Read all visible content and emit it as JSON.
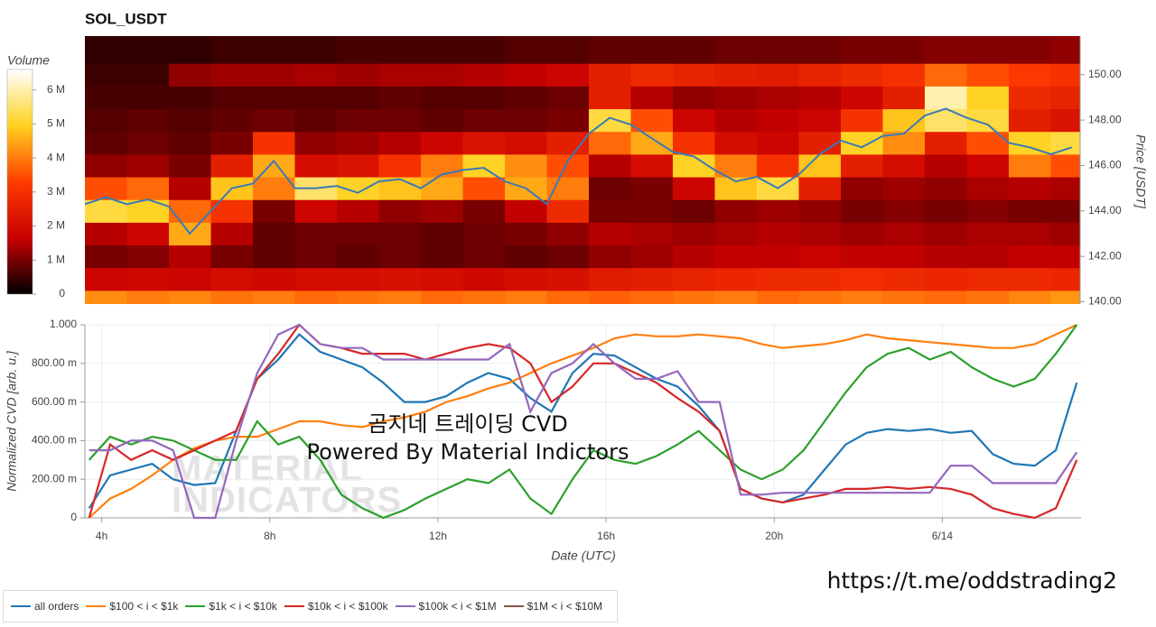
{
  "chart_data": [
    {
      "type": "heatmap",
      "title": "SOL_USDT",
      "xlim": [
        3.6,
        27.3
      ],
      "ylim": [
        139.9,
        151.7
      ],
      "yticks": [
        {
          "value": 140,
          "label": "140.00"
        },
        {
          "value": 142,
          "label": "142.00"
        },
        {
          "value": 144,
          "label": "144.00"
        },
        {
          "value": 146,
          "label": "146.00"
        },
        {
          "value": 148,
          "label": "148.00"
        },
        {
          "value": 150,
          "label": "150.00"
        }
      ],
      "ylabel": "Price [USDT]",
      "xbins": [
        3.6,
        4.6,
        5.6,
        6.6,
        7.6,
        8.6,
        9.6,
        10.6,
        11.6,
        12.6,
        13.6,
        14.6,
        15.6,
        16.6,
        17.6,
        18.6,
        19.6,
        20.6,
        21.6,
        22.6,
        23.6,
        24.6,
        25.6,
        26.6,
        27.3
      ],
      "ybins": [
        139.9,
        140.5,
        141.5,
        142.5,
        143.5,
        144.5,
        145.5,
        146.5,
        147.5,
        148.5,
        149.5,
        150.5,
        151.7
      ],
      "z": [
        [
          4.2,
          4.0,
          4.1,
          3.9,
          4.0,
          3.8,
          3.9,
          4.0,
          3.8,
          3.9,
          4.0,
          3.8,
          3.7,
          3.8,
          3.9,
          4.0,
          3.8,
          3.9,
          4.0,
          3.9,
          3.8,
          3.9,
          4.1,
          4.3
        ],
        [
          1.8,
          1.9,
          1.8,
          2.0,
          1.9,
          2.0,
          2.0,
          2.1,
          2.0,
          1.9,
          2.0,
          2.1,
          2.4,
          2.5,
          2.6,
          2.7,
          2.8,
          2.8,
          2.9,
          2.8,
          2.7,
          2.8,
          2.8,
          2.7
        ],
        [
          1.0,
          1.1,
          1.5,
          1.0,
          0.8,
          0.9,
          0.8,
          0.9,
          0.8,
          0.9,
          0.8,
          0.9,
          1.2,
          1.3,
          1.5,
          1.6,
          1.6,
          1.7,
          1.6,
          1.6,
          1.5,
          1.5,
          1.6,
          1.6
        ],
        [
          1.5,
          1.8,
          4.5,
          1.5,
          0.8,
          0.9,
          0.9,
          0.9,
          0.8,
          0.9,
          1.0,
          1.2,
          1.5,
          1.4,
          1.3,
          1.4,
          1.5,
          1.4,
          1.3,
          1.4,
          1.3,
          1.4,
          1.4,
          1.3
        ],
        [
          5.2,
          5.0,
          3.8,
          3.0,
          1.0,
          1.8,
          1.5,
          1.2,
          1.3,
          1.0,
          1.6,
          2.8,
          1.0,
          1.0,
          0.9,
          1.2,
          1.3,
          1.2,
          1.0,
          1.1,
          1.0,
          1.1,
          1.0,
          1.0
        ],
        [
          3.5,
          3.8,
          1.5,
          4.8,
          4.0,
          5.5,
          5.0,
          4.8,
          4.5,
          3.5,
          4.5,
          4.0,
          0.9,
          1.0,
          1.8,
          4.8,
          5.2,
          2.5,
          1.2,
          1.3,
          1.2,
          1.4,
          1.5,
          1.4
        ],
        [
          1.2,
          1.3,
          1.0,
          2.5,
          4.5,
          2.0,
          2.2,
          3.0,
          4.0,
          5.0,
          4.2,
          3.5,
          1.5,
          2.0,
          5.0,
          4.0,
          3.0,
          4.8,
          2.5,
          2.0,
          1.5,
          1.8,
          4.0,
          3.5
        ],
        [
          0.8,
          0.9,
          0.8,
          1.0,
          3.0,
          1.2,
          1.3,
          1.5,
          1.8,
          2.2,
          2.0,
          2.5,
          3.8,
          4.5,
          3.0,
          2.0,
          1.8,
          2.5,
          5.0,
          4.2,
          2.5,
          3.5,
          5.0,
          5.2
        ],
        [
          0.7,
          0.8,
          0.7,
          0.8,
          0.9,
          0.8,
          0.9,
          0.9,
          0.8,
          0.9,
          0.9,
          1.0,
          5.2,
          3.5,
          1.8,
          1.5,
          1.6,
          1.8,
          3.0,
          4.8,
          5.5,
          5.2,
          2.5,
          2.2
        ],
        [
          0.6,
          0.6,
          0.6,
          0.7,
          0.7,
          0.7,
          0.7,
          0.8,
          0.7,
          0.7,
          0.8,
          0.9,
          2.5,
          1.5,
          1.2,
          1.3,
          1.4,
          1.5,
          1.8,
          2.5,
          6.0,
          5.0,
          2.8,
          2.6
        ],
        [
          0.5,
          0.5,
          1.2,
          1.3,
          1.3,
          1.4,
          1.3,
          1.4,
          1.4,
          1.5,
          1.6,
          1.8,
          2.5,
          2.8,
          2.6,
          2.5,
          2.4,
          2.6,
          2.8,
          3.0,
          3.8,
          3.5,
          3.2,
          3.0
        ],
        [
          0.4,
          0.4,
          0.4,
          0.5,
          0.5,
          0.5,
          0.6,
          0.6,
          0.6,
          0.6,
          0.7,
          0.7,
          0.8,
          0.8,
          0.8,
          0.9,
          0.9,
          0.9,
          1.0,
          1.0,
          1.1,
          1.1,
          1.1,
          1.2
        ]
      ],
      "colorbar": {
        "title": "Volume",
        "lim": [
          0,
          6.6
        ],
        "ticks": [
          {
            "value": 0,
            "label": "0"
          },
          {
            "value": 1,
            "label": "1 M"
          },
          {
            "value": 2,
            "label": "2 M"
          },
          {
            "value": 3,
            "label": "3 M"
          },
          {
            "value": 4,
            "label": "4 M"
          },
          {
            "value": 5,
            "label": "5 M"
          },
          {
            "value": 6,
            "label": "6 M"
          }
        ],
        "colors": [
          "#000000",
          "#c80000",
          "#ff3c00",
          "#ffd21e",
          "#ffffff"
        ]
      },
      "series": [
        {
          "color": "#3a7ab8",
          "x": [
            3.6,
            4.1,
            4.6,
            5.1,
            5.6,
            6.1,
            6.6,
            7.1,
            7.6,
            8.1,
            8.6,
            9.1,
            9.6,
            10.1,
            10.6,
            11.1,
            11.6,
            12.1,
            12.6,
            13.1,
            13.6,
            14.1,
            14.6,
            15.1,
            15.6,
            16.1,
            16.6,
            17.1,
            17.6,
            18.1,
            18.6,
            19.1,
            19.6,
            20.1,
            20.6,
            21.1,
            21.6,
            22.1,
            22.6,
            23.1,
            23.6,
            24.1,
            24.6,
            25.1,
            25.6,
            26.1,
            26.6,
            27.1
          ],
          "values": [
            144.3,
            144.6,
            144.3,
            144.5,
            144.2,
            143.0,
            144.0,
            145.0,
            145.2,
            146.2,
            145.0,
            145.0,
            145.1,
            144.8,
            145.3,
            145.4,
            145.0,
            145.6,
            145.8,
            145.9,
            145.3,
            145.0,
            144.3,
            146.2,
            147.4,
            148.1,
            147.8,
            147.2,
            146.6,
            146.4,
            145.8,
            145.3,
            145.5,
            145.0,
            145.6,
            146.5,
            147.1,
            146.8,
            147.3,
            147.4,
            148.2,
            148.5,
            148.1,
            147.8,
            147.0,
            146.8,
            146.5,
            146.8
          ]
        }
      ]
    },
    {
      "type": "line",
      "xlim": [
        3.6,
        27.3
      ],
      "xticks": [
        {
          "value": 4,
          "label": "4h"
        },
        {
          "value": 8,
          "label": "8h"
        },
        {
          "value": 12,
          "label": "12h"
        },
        {
          "value": 16,
          "label": "16h"
        },
        {
          "value": 20,
          "label": "20h"
        },
        {
          "value": 24,
          "label": "6/14"
        }
      ],
      "ylim": [
        0,
        1
      ],
      "yticks": [
        0,
        {
          "value": 0.2,
          "label": "200.00 m"
        },
        {
          "value": 0.4,
          "label": "400.00 m"
        },
        {
          "value": 0.6,
          "label": "600.00 m"
        },
        {
          "value": 0.8,
          "label": "800.00 m"
        },
        {
          "value": 1,
          "label": "1.000"
        }
      ],
      "xlabel": "Date (UTC)",
      "ylabel": "Normalized CVD [arb. u.]",
      "grid": true,
      "annotations": [
        "곰지네 트레이딩 CVD",
        "Powered By Material Indictors"
      ],
      "x": [
        3.7,
        4.2,
        4.7,
        5.2,
        5.7,
        6.2,
        6.7,
        7.2,
        7.7,
        8.2,
        8.7,
        9.2,
        9.7,
        10.2,
        10.7,
        11.2,
        11.7,
        12.2,
        12.7,
        13.2,
        13.7,
        14.2,
        14.7,
        15.2,
        15.7,
        16.2,
        16.7,
        17.2,
        17.7,
        18.2,
        18.7,
        19.2,
        19.7,
        20.2,
        20.7,
        21.2,
        21.7,
        22.2,
        22.7,
        23.2,
        23.7,
        24.2,
        24.7,
        25.2,
        25.7,
        26.2,
        26.7,
        27.2
      ],
      "series": [
        {
          "name": "all orders",
          "color": "#1f77b4",
          "values": [
            0.05,
            0.22,
            0.25,
            0.28,
            0.2,
            0.17,
            0.18,
            0.45,
            0.72,
            0.82,
            0.95,
            0.86,
            0.82,
            0.78,
            0.7,
            0.6,
            0.6,
            0.63,
            0.7,
            0.75,
            0.72,
            0.62,
            0.55,
            0.75,
            0.85,
            0.84,
            0.78,
            0.72,
            0.68,
            0.58,
            0.45,
            0.15,
            0.1,
            0.08,
            0.12,
            0.25,
            0.38,
            0.44,
            0.46,
            0.45,
            0.46,
            0.44,
            0.45,
            0.33,
            0.28,
            0.27,
            0.35,
            0.7
          ]
        },
        {
          "name": "$100 < i < $1k",
          "color": "#ff7f0e",
          "values": [
            0.0,
            0.1,
            0.15,
            0.22,
            0.3,
            0.36,
            0.4,
            0.42,
            0.42,
            0.46,
            0.5,
            0.5,
            0.48,
            0.47,
            0.5,
            0.52,
            0.55,
            0.6,
            0.63,
            0.67,
            0.7,
            0.75,
            0.8,
            0.84,
            0.88,
            0.93,
            0.95,
            0.94,
            0.94,
            0.95,
            0.94,
            0.93,
            0.9,
            0.88,
            0.89,
            0.9,
            0.92,
            0.95,
            0.93,
            0.92,
            0.91,
            0.9,
            0.89,
            0.88,
            0.88,
            0.9,
            0.95,
            1.0
          ]
        },
        {
          "name": "$1k < i < $10k",
          "color": "#2ca02c",
          "values": [
            0.3,
            0.42,
            0.38,
            0.42,
            0.4,
            0.35,
            0.3,
            0.3,
            0.5,
            0.38,
            0.42,
            0.3,
            0.12,
            0.05,
            0.0,
            0.04,
            0.1,
            0.15,
            0.2,
            0.18,
            0.25,
            0.1,
            0.02,
            0.2,
            0.35,
            0.3,
            0.28,
            0.32,
            0.38,
            0.45,
            0.35,
            0.25,
            0.2,
            0.25,
            0.35,
            0.5,
            0.65,
            0.78,
            0.85,
            0.88,
            0.82,
            0.86,
            0.78,
            0.72,
            0.68,
            0.72,
            0.85,
            1.0
          ]
        },
        {
          "name": "$10k < i < $100k",
          "color": "#d62728",
          "values": [
            0.0,
            0.38,
            0.3,
            0.35,
            0.3,
            0.35,
            0.4,
            0.45,
            0.72,
            0.85,
            1.0,
            0.9,
            0.88,
            0.85,
            0.85,
            0.85,
            0.82,
            0.85,
            0.88,
            0.9,
            0.88,
            0.8,
            0.6,
            0.68,
            0.8,
            0.8,
            0.75,
            0.7,
            0.62,
            0.55,
            0.45,
            0.15,
            0.1,
            0.08,
            0.1,
            0.12,
            0.15,
            0.15,
            0.16,
            0.15,
            0.16,
            0.15,
            0.12,
            0.05,
            0.02,
            0.0,
            0.05,
            0.3
          ]
        },
        {
          "name": "$100k < i < $1M",
          "color": "#9467bd",
          "values": [
            0.35,
            0.35,
            0.4,
            0.4,
            0.35,
            0.0,
            0.0,
            0.4,
            0.75,
            0.95,
            1.0,
            0.9,
            0.88,
            0.88,
            0.82,
            0.82,
            0.82,
            0.82,
            0.82,
            0.82,
            0.9,
            0.55,
            0.75,
            0.8,
            0.9,
            0.8,
            0.72,
            0.72,
            0.76,
            0.6,
            0.6,
            0.12,
            0.12,
            0.13,
            0.13,
            0.13,
            0.13,
            0.13,
            0.13,
            0.13,
            0.13,
            0.27,
            0.27,
            0.18,
            0.18,
            0.18,
            0.18,
            0.34
          ]
        },
        {
          "name": "$1M < i < $10M",
          "color": "#8c564b",
          "values": [
            null,
            null,
            null,
            null,
            null,
            null,
            null,
            null,
            null,
            null,
            null,
            null,
            null,
            null,
            null,
            null,
            null,
            null,
            null,
            null,
            null,
            null,
            null,
            null,
            null,
            null,
            null,
            null,
            null,
            null,
            null,
            null,
            null,
            null,
            null,
            null,
            null,
            null,
            null,
            null,
            null,
            null,
            null,
            null,
            null,
            null,
            null,
            null
          ]
        }
      ]
    }
  ],
  "watermark": [
    "MATERIAL",
    "INDICATORS"
  ],
  "footer": "https://t.me/oddstrading2"
}
